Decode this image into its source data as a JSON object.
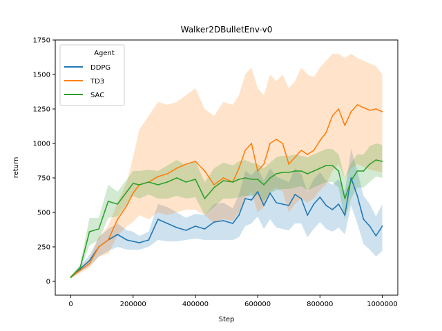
{
  "chart_data": {
    "type": "line",
    "title": "Walker2DBulletEnv-v0",
    "xlabel": "Step",
    "ylabel": "return",
    "xlim": [
      -50000,
      1050000
    ],
    "ylim": [
      -100,
      1750
    ],
    "xticks": [
      "0",
      "200000",
      "400000",
      "600000",
      "800000",
      "1000000"
    ],
    "yticks": [
      "0",
      "250",
      "500",
      "750",
      "1000",
      "1250",
      "1500",
      "1750"
    ],
    "legend": {
      "title": "Agent",
      "position": "top-left"
    },
    "series": [
      {
        "name": "DDPG",
        "color": "#1f77b4",
        "x": [
          0,
          30000,
          60000,
          90000,
          120000,
          150000,
          180000,
          200000,
          220000,
          250000,
          280000,
          310000,
          340000,
          370000,
          400000,
          430000,
          460000,
          490000,
          520000,
          540000,
          560000,
          580000,
          600000,
          620000,
          640000,
          660000,
          680000,
          700000,
          720000,
          740000,
          760000,
          780000,
          800000,
          820000,
          840000,
          860000,
          880000,
          900000,
          920000,
          940000,
          960000,
          980000,
          1000000
        ],
        "values": [
          30,
          90,
          150,
          250,
          300,
          340,
          300,
          290,
          280,
          300,
          450,
          420,
          390,
          370,
          400,
          380,
          430,
          440,
          420,
          480,
          600,
          590,
          650,
          550,
          640,
          570,
          560,
          550,
          630,
          600,
          480,
          560,
          610,
          550,
          520,
          560,
          480,
          750,
          620,
          450,
          400,
          330,
          400
        ],
        "lower": [
          20,
          70,
          110,
          180,
          220,
          250,
          230,
          230,
          230,
          250,
          300,
          290,
          290,
          300,
          310,
          300,
          300,
          300,
          300,
          320,
          400,
          420,
          470,
          380,
          450,
          390,
          380,
          370,
          420,
          420,
          320,
          380,
          430,
          380,
          360,
          390,
          340,
          550,
          420,
          270,
          230,
          180,
          220
        ],
        "upper": [
          40,
          110,
          190,
          320,
          380,
          420,
          370,
          360,
          330,
          360,
          560,
          540,
          500,
          460,
          490,
          480,
          560,
          570,
          530,
          630,
          800,
          770,
          820,
          730,
          820,
          760,
          740,
          720,
          820,
          780,
          650,
          740,
          790,
          730,
          700,
          740,
          650,
          960,
          800,
          620,
          560,
          470,
          560
        ]
      },
      {
        "name": "TD3",
        "color": "#ff7f0e",
        "x": [
          0,
          30000,
          60000,
          90000,
          120000,
          150000,
          180000,
          200000,
          220000,
          250000,
          280000,
          310000,
          340000,
          370000,
          400000,
          430000,
          460000,
          490000,
          520000,
          540000,
          560000,
          580000,
          600000,
          620000,
          640000,
          660000,
          680000,
          700000,
          720000,
          740000,
          760000,
          780000,
          800000,
          820000,
          840000,
          860000,
          880000,
          900000,
          920000,
          940000,
          960000,
          980000,
          1000000
        ],
        "values": [
          30,
          80,
          130,
          250,
          300,
          450,
          550,
          640,
          700,
          720,
          760,
          780,
          820,
          850,
          870,
          800,
          700,
          750,
          720,
          820,
          950,
          1000,
          800,
          850,
          1000,
          1030,
          1000,
          850,
          900,
          950,
          920,
          950,
          1020,
          1080,
          1200,
          1250,
          1130,
          1230,
          1280,
          1260,
          1240,
          1250,
          1230
        ],
        "lower": [
          20,
          60,
          100,
          180,
          200,
          330,
          400,
          430,
          480,
          450,
          500,
          480,
          500,
          520,
          520,
          480,
          420,
          450,
          440,
          500,
          600,
          650,
          500,
          540,
          650,
          680,
          650,
          500,
          560,
          600,
          570,
          600,
          660,
          700,
          800,
          850,
          750,
          820,
          850,
          830,
          810,
          800,
          790
        ],
        "upper": [
          40,
          100,
          160,
          320,
          400,
          570,
          720,
          900,
          1100,
          1200,
          1300,
          1280,
          1300,
          1350,
          1400,
          1250,
          1200,
          1300,
          1280,
          1350,
          1500,
          1550,
          1400,
          1350,
          1500,
          1450,
          1500,
          1400,
          1450,
          1550,
          1500,
          1480,
          1550,
          1600,
          1650,
          1650,
          1620,
          1650,
          1620,
          1600,
          1580,
          1560,
          1500
        ]
      },
      {
        "name": "SAC",
        "color": "#2ca02c",
        "x": [
          0,
          30000,
          60000,
          90000,
          120000,
          150000,
          180000,
          200000,
          220000,
          250000,
          280000,
          310000,
          340000,
          370000,
          400000,
          430000,
          460000,
          490000,
          520000,
          540000,
          560000,
          580000,
          600000,
          620000,
          640000,
          660000,
          680000,
          700000,
          720000,
          740000,
          760000,
          780000,
          800000,
          820000,
          840000,
          860000,
          880000,
          900000,
          920000,
          940000,
          960000,
          980000,
          1000000
        ],
        "values": [
          30,
          100,
          360,
          380,
          580,
          560,
          650,
          710,
          700,
          720,
          700,
          720,
          750,
          720,
          740,
          600,
          680,
          730,
          720,
          740,
          750,
          740,
          740,
          700,
          750,
          780,
          790,
          790,
          800,
          800,
          780,
          800,
          820,
          840,
          840,
          800,
          600,
          730,
          800,
          800,
          850,
          880,
          870
        ],
        "lower": [
          20,
          80,
          260,
          300,
          460,
          470,
          560,
          620,
          600,
          630,
          600,
          600,
          620,
          600,
          610,
          480,
          540,
          600,
          600,
          610,
          620,
          620,
          630,
          580,
          640,
          660,
          670,
          670,
          680,
          690,
          660,
          680,
          700,
          720,
          720,
          680,
          450,
          600,
          680,
          680,
          720,
          760,
          750
        ],
        "upper": [
          40,
          120,
          460,
          460,
          700,
          650,
          740,
          800,
          800,
          810,
          800,
          840,
          880,
          840,
          870,
          720,
          820,
          860,
          840,
          870,
          880,
          860,
          850,
          820,
          860,
          900,
          910,
          910,
          920,
          910,
          900,
          920,
          940,
          960,
          960,
          920,
          750,
          860,
          920,
          920,
          980,
          1000,
          990
        ]
      }
    ]
  }
}
